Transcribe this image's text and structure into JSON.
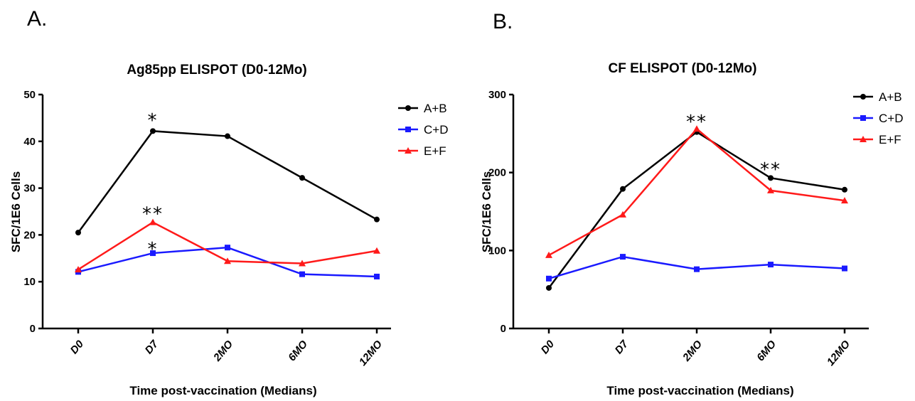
{
  "chart_data": [
    {
      "type": "line",
      "panel_label": "A.",
      "title": "Ag85pp ELISPOT (D0-12Mo)",
      "xlabel": "Time post-vaccination (Medians)",
      "ylabel": "SFC/1E6 Cells",
      "categories": [
        "D0",
        "D7",
        "2MO",
        "6MO",
        "12MO"
      ],
      "ylim": [
        0,
        50
      ],
      "yticks": [
        0,
        10,
        20,
        30,
        40,
        50
      ],
      "grid": false,
      "legend_position": "top-right",
      "series": [
        {
          "name": "A+B",
          "color": "#000000",
          "marker": "circle",
          "values": [
            20.5,
            42.2,
            41.1,
            32.2,
            23.3
          ]
        },
        {
          "name": "C+D",
          "color": "#1a1aff",
          "marker": "square",
          "values": [
            12.1,
            16.1,
            17.3,
            11.6,
            11.1
          ]
        },
        {
          "name": "E+F",
          "color": "#ff1a1a",
          "marker": "triangle",
          "values": [
            12.6,
            22.7,
            14.4,
            13.9,
            16.6
          ]
        }
      ],
      "annotations": [
        {
          "text": "*",
          "category": "D7",
          "y": 45.0
        },
        {
          "text": "**",
          "category": "D7",
          "y": 25.0
        },
        {
          "text": "*",
          "category": "D7",
          "y": 17.5
        }
      ]
    },
    {
      "type": "line",
      "panel_label": "B.",
      "title": "CF ELISPOT (D0-12Mo)",
      "xlabel": "Time post-vaccination (Medians)",
      "ylabel": "SFC/1E6 Cells",
      "categories": [
        "D0",
        "D7",
        "2MO",
        "6MO",
        "12MO"
      ],
      "ylim": [
        0,
        300
      ],
      "yticks": [
        0,
        100,
        200,
        300
      ],
      "grid": false,
      "legend_position": "top-right",
      "series": [
        {
          "name": "A+B",
          "color": "#000000",
          "marker": "circle",
          "values": [
            52,
            179,
            252,
            193,
            178
          ]
        },
        {
          "name": "C+D",
          "color": "#1a1aff",
          "marker": "square",
          "values": [
            64,
            92,
            76,
            82,
            77
          ]
        },
        {
          "name": "E+F",
          "color": "#ff1a1a",
          "marker": "triangle",
          "values": [
            94,
            146,
            256,
            177,
            164
          ]
        }
      ],
      "annotations": [
        {
          "text": "**",
          "category": "2MO",
          "y": 268
        },
        {
          "text": "**",
          "category": "6MO",
          "y": 207
        }
      ]
    }
  ]
}
